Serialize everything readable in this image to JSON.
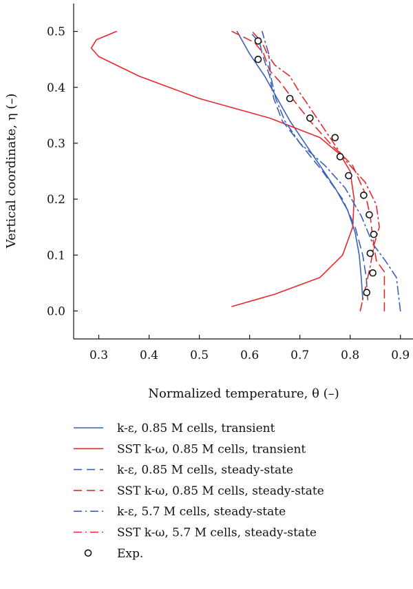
{
  "chart_data": {
    "type": "line",
    "xlabel": "Normalized temperature, θ (–)",
    "ylabel": "Vertical coordinate, η (–)",
    "xlim": [
      0.25,
      0.925
    ],
    "ylim": [
      -0.05,
      0.55
    ],
    "xticks": [
      "0.3",
      "0.4",
      "0.5",
      "0.6",
      "0.7",
      "0.8",
      "0.9"
    ],
    "yticks": [
      "0.0",
      "0.1",
      "0.2",
      "0.3",
      "0.4",
      "0.5"
    ],
    "grid": false,
    "legend_position": "below",
    "series": [
      {
        "name": "k-ε, 0.85 M cells, transient",
        "color": "#3a5fb8",
        "dash": "solid",
        "points": [
          [
            0.825,
            0.02
          ],
          [
            0.822,
            0.06
          ],
          [
            0.818,
            0.1
          ],
          [
            0.81,
            0.14
          ],
          [
            0.795,
            0.18
          ],
          [
            0.77,
            0.22
          ],
          [
            0.74,
            0.26
          ],
          [
            0.71,
            0.3
          ],
          [
            0.68,
            0.34
          ],
          [
            0.655,
            0.38
          ],
          [
            0.63,
            0.42
          ],
          [
            0.6,
            0.46
          ],
          [
            0.575,
            0.5
          ]
        ]
      },
      {
        "name": "SST k-ω, 0.85 M cells, transient",
        "color": "#e8262a",
        "dash": "solid",
        "points": [
          [
            0.565,
            0.008
          ],
          [
            0.65,
            0.03
          ],
          [
            0.74,
            0.06
          ],
          [
            0.785,
            0.1
          ],
          [
            0.805,
            0.15
          ],
          [
            0.808,
            0.2
          ],
          [
            0.8,
            0.25
          ],
          [
            0.78,
            0.28
          ],
          [
            0.74,
            0.31
          ],
          [
            0.64,
            0.345
          ],
          [
            0.5,
            0.38
          ],
          [
            0.38,
            0.42
          ],
          [
            0.3,
            0.455
          ],
          [
            0.285,
            0.47
          ],
          [
            0.295,
            0.485
          ],
          [
            0.335,
            0.5
          ]
        ]
      },
      {
        "name": "k-ε, 0.85 M cells, steady-state",
        "color": "#3a5fb8",
        "dash": "dashed",
        "points": [
          [
            0.835,
            0.02
          ],
          [
            0.832,
            0.06
          ],
          [
            0.825,
            0.1
          ],
          [
            0.81,
            0.15
          ],
          [
            0.785,
            0.2
          ],
          [
            0.745,
            0.25
          ],
          [
            0.7,
            0.3
          ],
          [
            0.665,
            0.34
          ],
          [
            0.648,
            0.38
          ],
          [
            0.64,
            0.42
          ],
          [
            0.625,
            0.46
          ],
          [
            0.62,
            0.48
          ],
          [
            0.6,
            0.5
          ]
        ]
      },
      {
        "name": "SST k-ω, 0.85 M cells, steady-state",
        "color": "#e8262a",
        "dash": "dashed",
        "points": [
          [
            0.868,
            0.0
          ],
          [
            0.868,
            0.07
          ],
          [
            0.852,
            0.09
          ],
          [
            0.845,
            0.13
          ],
          [
            0.84,
            0.17
          ],
          [
            0.83,
            0.21
          ],
          [
            0.805,
            0.26
          ],
          [
            0.76,
            0.3
          ],
          [
            0.72,
            0.34
          ],
          [
            0.685,
            0.38
          ],
          [
            0.66,
            0.41
          ],
          [
            0.64,
            0.43
          ],
          [
            0.628,
            0.46
          ],
          [
            0.61,
            0.48
          ],
          [
            0.565,
            0.5
          ]
        ]
      },
      {
        "name": "k-ε, 5.7 M cells, steady-state",
        "color": "#3a5fb8",
        "dash": "dashdot",
        "points": [
          [
            0.9,
            0.0
          ],
          [
            0.892,
            0.06
          ],
          [
            0.87,
            0.09
          ],
          [
            0.845,
            0.12
          ],
          [
            0.822,
            0.17
          ],
          [
            0.79,
            0.22
          ],
          [
            0.75,
            0.26
          ],
          [
            0.7,
            0.3
          ],
          [
            0.67,
            0.34
          ],
          [
            0.652,
            0.38
          ],
          [
            0.642,
            0.42
          ],
          [
            0.638,
            0.46
          ],
          [
            0.628,
            0.49
          ],
          [
            0.625,
            0.5
          ]
        ]
      },
      {
        "name": "SST k-ω, 5.7 M cells, steady-state",
        "color": "#e8262a",
        "dash": "dashdot",
        "points": [
          [
            0.82,
            0.0
          ],
          [
            0.83,
            0.04
          ],
          [
            0.84,
            0.08
          ],
          [
            0.848,
            0.12
          ],
          [
            0.858,
            0.15
          ],
          [
            0.852,
            0.19
          ],
          [
            0.83,
            0.23
          ],
          [
            0.79,
            0.27
          ],
          [
            0.76,
            0.31
          ],
          [
            0.73,
            0.35
          ],
          [
            0.7,
            0.39
          ],
          [
            0.68,
            0.42
          ],
          [
            0.65,
            0.44
          ],
          [
            0.635,
            0.46
          ],
          [
            0.625,
            0.48
          ],
          [
            0.605,
            0.5
          ]
        ]
      },
      {
        "name": "Exp.",
        "color": "#111111",
        "dash": "marker",
        "points": [
          [
            0.617,
            0.483
          ],
          [
            0.617,
            0.45
          ],
          [
            0.68,
            0.38
          ],
          [
            0.72,
            0.345
          ],
          [
            0.77,
            0.31
          ],
          [
            0.78,
            0.276
          ],
          [
            0.797,
            0.242
          ],
          [
            0.827,
            0.207
          ],
          [
            0.838,
            0.172
          ],
          [
            0.847,
            0.137
          ],
          [
            0.84,
            0.103
          ],
          [
            0.845,
            0.068
          ],
          [
            0.833,
            0.033
          ]
        ]
      }
    ]
  }
}
